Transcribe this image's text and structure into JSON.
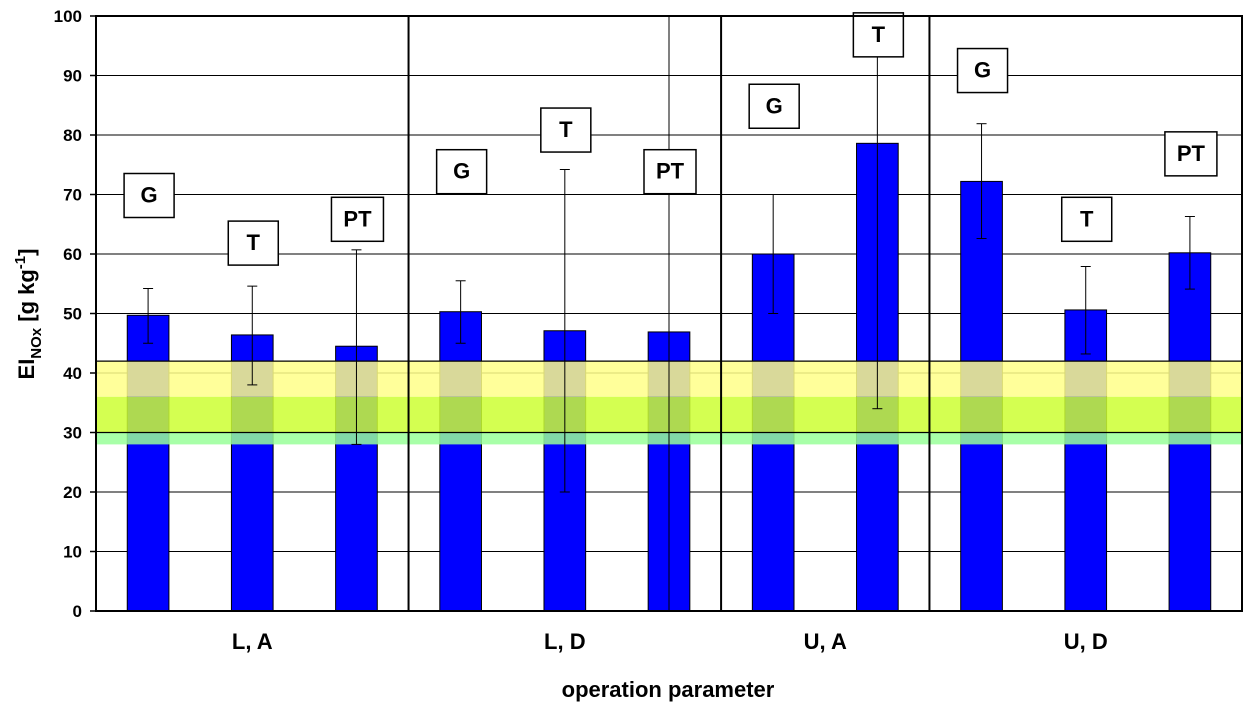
{
  "chart_data": {
    "type": "bar",
    "title": "",
    "xlabel": "operation parameter",
    "ylabel": {
      "main": "EI",
      "sub": "NOx",
      "unit_prefix": " [g kg",
      "unit_sup": "-1",
      "unit_suffix": "]"
    },
    "ylim": [
      0,
      100
    ],
    "yticks": [
      0,
      10,
      20,
      30,
      40,
      50,
      60,
      70,
      80,
      90,
      100
    ],
    "grid": true,
    "bar_color": "#0000FF",
    "groups": [
      {
        "label": "L, A",
        "bars": [
          {
            "name": "G",
            "value": 49.7,
            "err_low": 45.0,
            "err_high": 54.2,
            "label_y": 70
          },
          {
            "name": "T",
            "value": 46.4,
            "err_low": 38.0,
            "err_high": 54.6,
            "label_y": 62
          },
          {
            "name": "PT",
            "value": 44.5,
            "err_low": 28.0,
            "err_high": 60.7,
            "label_y": 66
          }
        ]
      },
      {
        "label": "L, D",
        "bars": [
          {
            "name": "G",
            "value": 50.3,
            "err_low": 45.0,
            "err_high": 55.5,
            "label_y": 74
          },
          {
            "name": "T",
            "value": 47.1,
            "err_low": 20.0,
            "err_high": 74.2,
            "label_y": 81
          },
          {
            "name": "PT",
            "value": 46.9,
            "err_low": 0.0,
            "err_high": 100.0,
            "label_y": 74
          }
        ]
      },
      {
        "label": "U, A",
        "bars": [
          {
            "name": "G",
            "value": 60.0,
            "err_low": 50.0,
            "err_high": 70.0,
            "label_y": 85
          },
          {
            "name": "T",
            "value": 78.6,
            "err_low": 34.0,
            "err_high": 100.0,
            "label_y": 97
          }
        ]
      },
      {
        "label": "U, D",
        "bars": [
          {
            "name": "G",
            "value": 72.2,
            "err_low": 62.6,
            "err_high": 81.9,
            "label_y": 91
          },
          {
            "name": "T",
            "value": 50.6,
            "err_low": 43.2,
            "err_high": 57.9,
            "label_y": 66
          },
          {
            "name": "PT",
            "value": 60.2,
            "err_low": 54.1,
            "err_high": 66.3,
            "label_y": 77
          }
        ]
      }
    ],
    "bands": [
      {
        "ymin": 36,
        "ymax": 42,
        "color": "#FFFF88",
        "opacity": 0.85
      },
      {
        "ymin": 30,
        "ymax": 36,
        "color": "#CCFF33",
        "opacity": 0.85
      },
      {
        "ymin": 28,
        "ymax": 30,
        "color": "#99FF99",
        "opacity": 0.85
      }
    ],
    "band_lines": [
      42,
      30
    ]
  }
}
